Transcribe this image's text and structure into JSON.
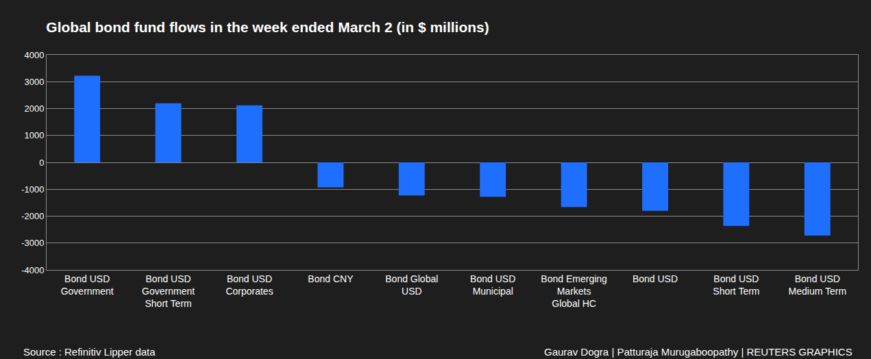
{
  "chart_data": {
    "type": "bar",
    "title": "Global bond fund flows in the week ended March 2 (in $ millions)",
    "categories": [
      "Bond USD Government",
      "Bond USD Government Short Term",
      "Bond USD Corporates",
      "Bond CNY",
      "Bond Global USD",
      "Bond USD Municipal",
      "Bond Emerging Markets Global HC",
      "Bond USD",
      "Bond USD Short Term",
      "Bond USD Medium Term"
    ],
    "values": [
      3220,
      2200,
      2120,
      -930,
      -1230,
      -1280,
      -1660,
      -1800,
      -2360,
      -2720
    ],
    "color": "#1f6fff",
    "ylim": [
      -4000,
      4000
    ],
    "yticks": [
      -4000,
      -3000,
      -2000,
      -1000,
      0,
      1000,
      2000,
      3000,
      4000
    ],
    "grid": true,
    "annotations": [
      "Source : Refinitiv Lipper data",
      "Gaurav Dogra | Patturaja Murugaboopathy | REUTERS GRAPHICS"
    ]
  }
}
